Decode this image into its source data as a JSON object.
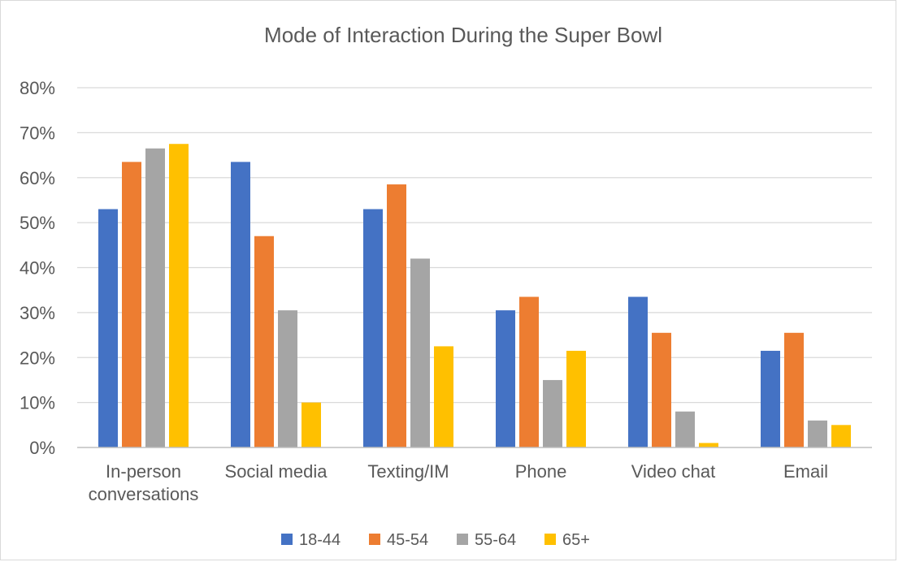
{
  "chart_data": {
    "type": "bar",
    "title": "Mode of Interaction During the Super Bowl",
    "xlabel": "",
    "ylabel": "",
    "ylim": [
      0,
      80
    ],
    "y_ticks": [
      "0%",
      "10%",
      "20%",
      "30%",
      "40%",
      "50%",
      "60%",
      "70%",
      "80%"
    ],
    "categories": [
      [
        "In-person",
        "conversations"
      ],
      [
        "Social media"
      ],
      [
        "Texting/IM"
      ],
      [
        "Phone"
      ],
      [
        "Video chat"
      ],
      [
        "Email"
      ]
    ],
    "series": [
      {
        "name": "18-44",
        "color": "#4472C4",
        "values": [
          53,
          63.5,
          53,
          30.5,
          33.5,
          21.5
        ]
      },
      {
        "name": "45-54",
        "color": "#ED7D31",
        "values": [
          63.5,
          47,
          58.5,
          33.5,
          25.5,
          25.5
        ]
      },
      {
        "name": "55-64",
        "color": "#A5A5A5",
        "values": [
          66.5,
          30.5,
          42,
          15,
          8,
          6
        ]
      },
      {
        "name": "65+",
        "color": "#FFC000",
        "values": [
          67.5,
          10,
          22.5,
          21.5,
          1,
          5
        ]
      }
    ],
    "grid": true,
    "legend_position": "bottom"
  }
}
